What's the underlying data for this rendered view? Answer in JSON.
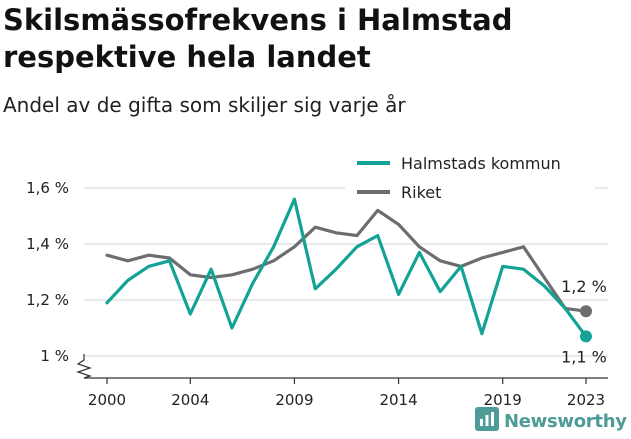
{
  "header": {
    "title": "Skilsmässofrekvens i Halmstad respektive hela landet",
    "subtitle": "Andel av de gifta som skiljer sig varje år"
  },
  "brand": {
    "name": "Newsworthy",
    "icon": "newsworthy-logo-icon"
  },
  "colors": {
    "halmstad": "#13a394",
    "riket": "#6d6d6f",
    "grid": "#d4d4d4",
    "axis": "#333333"
  },
  "chart_data": {
    "type": "line",
    "title": "Skilsmässofrekvens i Halmstad respektive hela landet",
    "subtitle": "Andel av de gifta som skiljer sig varje år",
    "x": [
      2000,
      2001,
      2002,
      2003,
      2004,
      2005,
      2006,
      2007,
      2008,
      2009,
      2010,
      2011,
      2012,
      2013,
      2014,
      2015,
      2016,
      2017,
      2018,
      2019,
      2020,
      2021,
      2022,
      2023
    ],
    "series": [
      {
        "name": "Halmstads kommun",
        "color": "#13a394",
        "values": [
          1.19,
          1.27,
          1.32,
          1.34,
          1.15,
          1.31,
          1.1,
          1.26,
          1.39,
          1.56,
          1.24,
          1.31,
          1.39,
          1.43,
          1.22,
          1.37,
          1.23,
          1.32,
          1.08,
          1.32,
          1.31,
          1.25,
          1.17,
          1.07
        ],
        "end_label": "1,1 %"
      },
      {
        "name": "Riket",
        "color": "#6d6d6f",
        "values": [
          1.36,
          1.34,
          1.36,
          1.35,
          1.29,
          1.28,
          1.29,
          1.31,
          1.34,
          1.39,
          1.46,
          1.44,
          1.43,
          1.52,
          1.47,
          1.39,
          1.34,
          1.32,
          1.35,
          1.37,
          1.39,
          1.28,
          1.17,
          1.16
        ],
        "end_label": "1,2 %"
      }
    ],
    "ylim": [
      1.0,
      1.6
    ],
    "yticks": [
      1.0,
      1.2,
      1.4,
      1.6
    ],
    "ytick_labels": [
      "1 %",
      "1,2 %",
      "1,4 %",
      "1,6 %"
    ],
    "xticks": [
      2000,
      2004,
      2009,
      2014,
      2019,
      2023
    ],
    "xtick_labels": [
      "2000",
      "2004",
      "2009",
      "2014",
      "2019",
      "2023"
    ],
    "grid": true,
    "y_axis_break": true,
    "legend_position": "top-right",
    "xlabel": "",
    "ylabel": ""
  }
}
